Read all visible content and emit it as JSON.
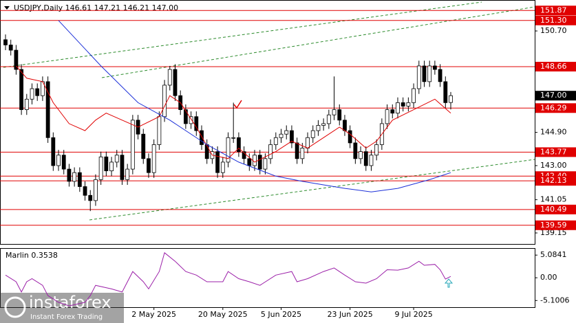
{
  "chart_data": [
    {
      "type": "candlestick",
      "title": "USDJPY,Daily  146.61 147.21 146.21 147.00",
      "categories": [
        null,
        null,
        null,
        null,
        null,
        null,
        null,
        null,
        null,
        null,
        null,
        null,
        null,
        null,
        null,
        null,
        null,
        null,
        null,
        null,
        null,
        null,
        null,
        null,
        null,
        null,
        null,
        null,
        "2 May 2025",
        null,
        null,
        null,
        null,
        null,
        null,
        null,
        null,
        null,
        null,
        null,
        null,
        "20 May 2025",
        null,
        null,
        null,
        null,
        null,
        null,
        null,
        null,
        null,
        null,
        "5 Jun 2025",
        null,
        null,
        null,
        null,
        null,
        null,
        null,
        null,
        null,
        null,
        null,
        null,
        "23 Jun 2025",
        null,
        null,
        null,
        null,
        null,
        null,
        null,
        null,
        null,
        null,
        null,
        "9 Jul 2025",
        null,
        null,
        null,
        null,
        null,
        null,
        null
      ],
      "open": [
        150.2,
        149.9,
        149.6,
        148.5,
        146.2,
        146.8,
        147.4,
        147.0,
        147.8,
        144.6,
        143.0,
        143.6,
        142.8,
        142.1,
        142.6,
        141.8,
        141.3,
        141.0,
        142.2,
        143.5,
        142.7,
        143.2,
        143.6,
        142.2,
        142.8,
        145.6,
        144.8,
        143.4,
        142.6,
        144.2,
        145.8,
        147.6,
        148.5,
        147.0,
        146.2,
        145.4,
        145.8,
        145.0,
        144.2,
        143.4,
        143.8,
        142.6,
        143.2,
        144.6,
        144.6,
        143.8,
        143.4,
        143.0,
        143.6,
        142.8,
        143.4,
        144.2,
        144.6,
        144.8,
        145.0,
        144.3,
        143.4,
        144.0,
        144.6,
        145.0,
        145.3,
        145.4,
        145.9,
        146.2,
        145.6,
        145.0,
        144.3,
        143.4,
        143.8,
        143.0,
        143.6,
        144.2,
        145.4,
        146.2,
        146.0,
        146.6,
        146.4,
        146.6,
        147.4,
        148.7,
        147.8,
        148.7,
        148.5,
        147.8,
        146.61
      ],
      "high": [
        150.5,
        150.2,
        149.9,
        148.8,
        147.1,
        147.7,
        147.7,
        148.1,
        148.1,
        144.9,
        143.9,
        143.9,
        143.1,
        142.9,
        142.9,
        142.1,
        141.6,
        142.5,
        143.8,
        143.8,
        143.5,
        143.9,
        143.9,
        143.1,
        145.9,
        145.9,
        145.1,
        143.7,
        144.5,
        146.1,
        147.9,
        148.7,
        148.8,
        147.3,
        146.5,
        146.1,
        146.1,
        145.3,
        144.5,
        144.1,
        144.1,
        143.5,
        144.9,
        146.6,
        144.9,
        144.1,
        143.7,
        143.9,
        143.9,
        143.7,
        144.5,
        144.9,
        145.1,
        145.3,
        145.3,
        144.6,
        144.3,
        144.9,
        145.3,
        145.6,
        145.7,
        146.2,
        148.1,
        146.5,
        145.9,
        145.3,
        144.6,
        144.1,
        144.1,
        143.9,
        144.5,
        145.7,
        146.5,
        146.5,
        146.9,
        146.9,
        146.9,
        147.7,
        149.0,
        149.0,
        149.0,
        149.0,
        148.8,
        148.1,
        147.21
      ],
      "low": [
        149.6,
        149.3,
        148.2,
        145.9,
        145.9,
        146.5,
        146.7,
        146.7,
        144.3,
        142.7,
        142.7,
        142.5,
        141.8,
        141.8,
        141.5,
        141.0,
        140.4,
        140.7,
        141.9,
        142.4,
        142.4,
        142.9,
        141.9,
        141.9,
        142.5,
        144.5,
        143.1,
        142.3,
        142.3,
        143.9,
        145.5,
        147.3,
        146.7,
        145.9,
        145.1,
        145.1,
        144.7,
        143.9,
        143.1,
        143.1,
        142.3,
        142.3,
        142.9,
        144.3,
        143.5,
        143.1,
        142.7,
        142.7,
        142.5,
        142.5,
        143.1,
        143.9,
        144.3,
        144.5,
        144.0,
        143.1,
        143.1,
        143.7,
        144.3,
        144.7,
        145.0,
        145.1,
        145.6,
        145.3,
        144.7,
        144.0,
        143.1,
        143.1,
        142.7,
        142.7,
        143.3,
        143.9,
        145.1,
        145.7,
        145.7,
        146.1,
        146.1,
        146.3,
        147.1,
        147.5,
        147.5,
        148.2,
        147.5,
        146.3,
        146.21
      ],
      "close": [
        149.9,
        149.6,
        148.5,
        146.2,
        146.8,
        147.4,
        147.0,
        147.8,
        144.6,
        143.0,
        143.6,
        142.8,
        142.1,
        142.6,
        141.8,
        141.3,
        141.0,
        142.2,
        143.5,
        142.7,
        143.2,
        143.6,
        142.2,
        142.8,
        145.6,
        144.8,
        143.4,
        142.6,
        144.2,
        145.8,
        147.6,
        148.5,
        147.0,
        146.2,
        145.4,
        145.8,
        145.0,
        144.2,
        143.4,
        143.8,
        142.6,
        143.2,
        144.6,
        144.6,
        143.8,
        143.4,
        143.0,
        143.6,
        142.8,
        143.4,
        144.2,
        144.6,
        144.8,
        145.0,
        144.3,
        143.4,
        144.0,
        144.6,
        145.0,
        145.3,
        145.4,
        145.9,
        146.2,
        145.6,
        145.0,
        144.3,
        143.4,
        143.8,
        143.0,
        143.6,
        144.2,
        145.4,
        146.2,
        146.0,
        146.6,
        146.4,
        146.6,
        147.4,
        148.7,
        147.8,
        148.7,
        148.5,
        147.8,
        146.6,
        147.0
      ],
      "ylim": [
        138.52,
        152.47
      ],
      "yticks": [
        {
          "value": 150.7,
          "label": "150.70"
        },
        {
          "value": 144.9,
          "label": "144.90"
        },
        {
          "value": 143,
          "label": "143.00"
        },
        141.05,
        139.15
      ],
      "levels": [
        151.87,
        {
          "value": 151.3,
          "label": "151.30"
        },
        148.66,
        146.29,
        143.77,
        {
          "value": 142.4,
          "label": "142.40"
        },
        142.13,
        140.49,
        139.59
      ],
      "level_color": "#e00000",
      "last_price": {
        "value": 147,
        "label": "147.00"
      },
      "overlays": [
        {
          "color": "#e00000",
          "x": [
            2,
            4,
            7,
            9,
            12,
            15,
            17,
            19,
            22,
            25,
            29,
            31,
            33,
            36,
            39,
            42,
            44,
            47,
            51,
            54,
            57,
            60,
            63,
            65,
            68,
            70,
            73,
            77,
            81,
            84
          ],
          "values": [
            148.7,
            148.0,
            147.8,
            146.6,
            145.4,
            145.0,
            145.6,
            146.0,
            145.6,
            145.2,
            145.8,
            147.0,
            146.6,
            145.2,
            143.6,
            143.4,
            144.0,
            143.2,
            143.8,
            144.4,
            144.0,
            144.6,
            145.2,
            144.8,
            144.0,
            144.4,
            145.6,
            146.2,
            146.8,
            146.0
          ]
        },
        {
          "color": "#1a2ed8",
          "x": [
            10,
            18,
            25,
            31,
            38,
            44,
            51,
            56,
            64,
            69,
            74,
            80,
            84
          ],
          "values": [
            151.3,
            148.7,
            146.6,
            145.6,
            144.2,
            143.2,
            142.4,
            142.1,
            141.7,
            141.5,
            141.7,
            142.2,
            142.6
          ]
        }
      ],
      "watermark": {
        "brand": "instaforex",
        "tagline": "Instant Forex Trading"
      }
    },
    {
      "type": "line",
      "title": "Marlin 0.3538",
      "color": "#9b1fa8",
      "x": [
        0,
        2,
        3,
        4,
        5,
        7,
        8,
        10,
        12,
        15,
        16,
        17,
        20,
        22,
        24,
        26,
        27,
        29,
        30,
        32,
        34,
        36,
        38,
        41,
        42,
        44,
        46,
        48,
        51,
        54,
        55,
        57,
        60,
        62,
        64,
        66,
        68,
        70,
        72,
        74,
        76,
        78,
        79,
        81,
        82,
        83,
        84
      ],
      "values": [
        0.6,
        -0.9,
        -3.2,
        -0.9,
        -0.2,
        -1.7,
        -4.0,
        -5.5,
        -6.3,
        -5.5,
        -4.0,
        -1.7,
        -2.5,
        -3.2,
        1.4,
        -0.9,
        -2.5,
        1.4,
        5.6,
        3.7,
        1.4,
        0.6,
        -0.9,
        -0.9,
        1.4,
        -0.2,
        -0.9,
        -1.7,
        0.6,
        1.4,
        -0.9,
        -0.2,
        1.4,
        2.2,
        0.6,
        -0.9,
        -1.2,
        -0.2,
        1.8,
        1.7,
        2.2,
        3.7,
        2.8,
        3.0,
        1.8,
        -0.3,
        0.3
      ],
      "ylim": [
        -6.6,
        6.5
      ],
      "yticks": [
        5.0841,
        {
          "value": 0,
          "label": "0.00"
        },
        -5.1006
      ]
    }
  ]
}
